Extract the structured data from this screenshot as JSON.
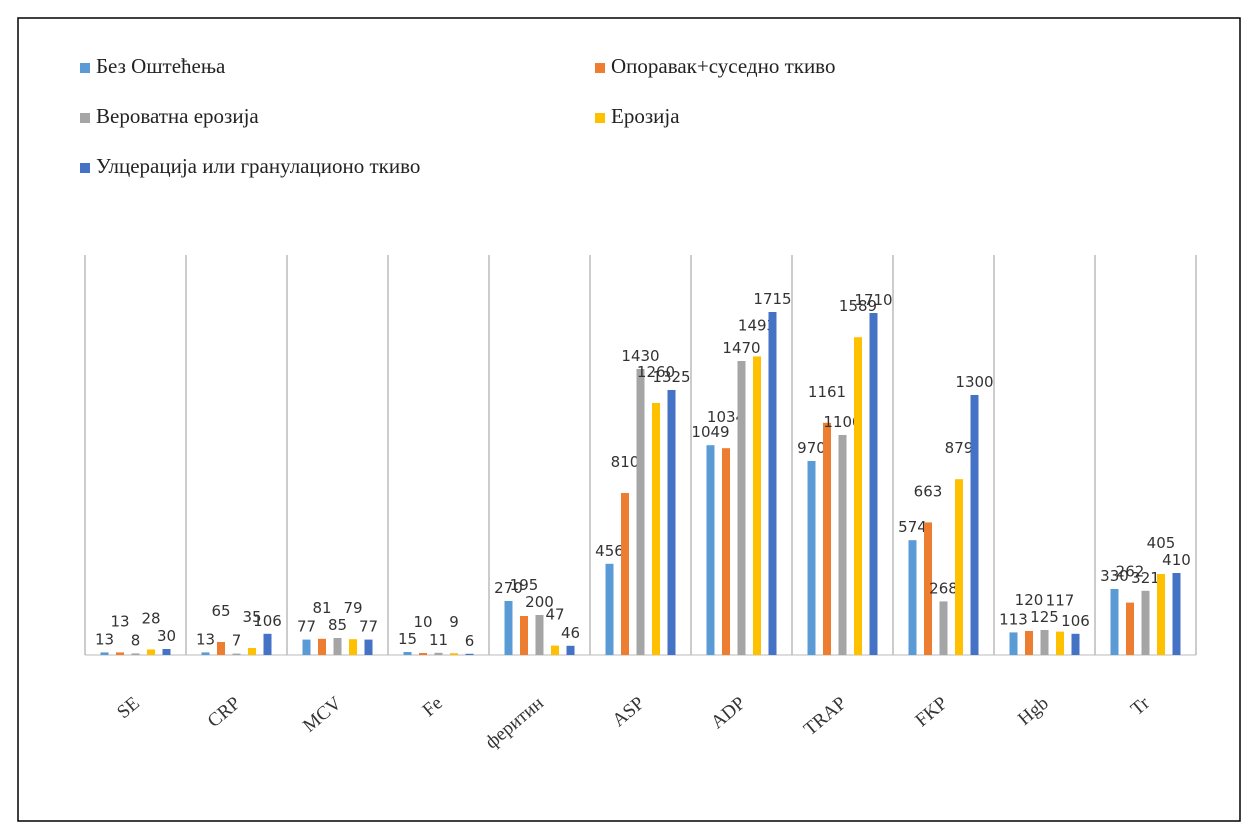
{
  "chart_data": {
    "type": "bar",
    "categories": [
      "SE",
      "CRP",
      "MCV",
      "Fe",
      "феритин",
      "ASP",
      "ADP",
      "TRAP",
      "FKP",
      "Hgb",
      "Tr"
    ],
    "series": [
      {
        "name": "Без Оштећења",
        "color": "#5b9bd5",
        "values": [
          13,
          13,
          77,
          15,
          270,
          456,
          1049,
          970,
          574,
          113,
          330
        ]
      },
      {
        "name": "Опоравак+суседно ткиво",
        "color": "#ed7d31",
        "values": [
          13,
          65,
          81,
          10,
          195,
          810,
          1034,
          1161,
          663,
          120,
          262
        ]
      },
      {
        "name": "Вероватна ерозија",
        "color": "#a5a5a5",
        "values": [
          8,
          7,
          85,
          11,
          200,
          1430,
          1470,
          1100,
          268,
          125,
          321
        ]
      },
      {
        "name": "Ерозија",
        "color": "#ffc000",
        "values": [
          28,
          35,
          79,
          9,
          47,
          1260,
          1493,
          1589,
          879,
          117,
          405
        ]
      },
      {
        "name": "Улцерација или гранулационо ткиво",
        "color": "#4472c4",
        "values": [
          30,
          106,
          77,
          6,
          46,
          1325,
          1715,
          1710,
          1300,
          106,
          410
        ]
      }
    ],
    "ylim": [
      0,
      2000
    ],
    "grid": true
  }
}
